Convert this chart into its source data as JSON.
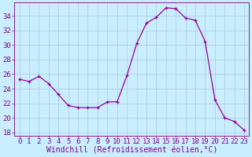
{
  "x": [
    0,
    1,
    2,
    3,
    4,
    5,
    6,
    7,
    8,
    9,
    10,
    11,
    12,
    13,
    14,
    15,
    16,
    17,
    18,
    19,
    20,
    21,
    22,
    23
  ],
  "y": [
    25.3,
    25.0,
    25.7,
    24.7,
    23.2,
    21.7,
    21.4,
    21.4,
    21.4,
    22.2,
    22.2,
    25.8,
    30.2,
    33.0,
    33.8,
    35.1,
    35.0,
    33.7,
    33.4,
    30.5,
    22.5,
    20.0,
    19.5,
    18.3
  ],
  "line_color": "#990099",
  "marker": "+",
  "marker_size": 3,
  "bg_color": "#c9eeff",
  "grid_color": "#b0c8d8",
  "xlabel": "Windchill (Refroidissement éolien,°C)",
  "ylabel_ticks": [
    18,
    20,
    22,
    24,
    26,
    28,
    30,
    32,
    34
  ],
  "xtick_labels": [
    "0",
    "1",
    "2",
    "3",
    "4",
    "5",
    "6",
    "7",
    "8",
    "9",
    "10",
    "11",
    "12",
    "13",
    "14",
    "15",
    "16",
    "17",
    "18",
    "19",
    "20",
    "21",
    "22",
    "23"
  ],
  "ylim": [
    17.5,
    35.8
  ],
  "xlim": [
    -0.5,
    23.5
  ],
  "font_color": "#880088",
  "font_size": 6.5,
  "xlabel_fontsize": 7.0,
  "lw": 0.9
}
